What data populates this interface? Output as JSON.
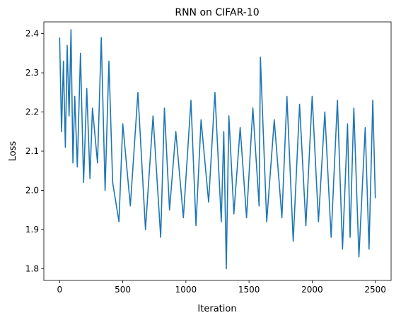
{
  "chart_data": {
    "type": "line",
    "title": "RNN on CIFAR-10",
    "xlabel": "Iteration",
    "ylabel": "Loss",
    "xlim": [
      -125,
      2625
    ],
    "ylim": [
      1.77,
      2.43
    ],
    "xticks": [
      0,
      500,
      1000,
      1500,
      2000,
      2500
    ],
    "xtick_labels": [
      "0",
      "500",
      "1000",
      "1500",
      "2000",
      "2500"
    ],
    "yticks": [
      1.8,
      1.9,
      2.0,
      2.1,
      2.2,
      2.3,
      2.4
    ],
    "ytick_labels": [
      "1.8",
      "1.9",
      "2.0",
      "2.1",
      "2.2",
      "2.3",
      "2.4"
    ],
    "grid": false,
    "line_color": "#1f77b4",
    "series": [
      {
        "points_note": "loss per iteration, 0..2500",
        "x": [
          0,
          15,
          30,
          45,
          60,
          75,
          90,
          105,
          120,
          140,
          165,
          190,
          215,
          240,
          260,
          300,
          330,
          360,
          390,
          420,
          470,
          500,
          560,
          620,
          680,
          740,
          800,
          830,
          870,
          920,
          980,
          1040,
          1080,
          1120,
          1180,
          1230,
          1280,
          1300,
          1320,
          1340,
          1380,
          1430,
          1480,
          1530,
          1580,
          1590,
          1640,
          1700,
          1760,
          1800,
          1850,
          1900,
          1950,
          2000,
          2050,
          2100,
          2150,
          2200,
          2240,
          2280,
          2300,
          2330,
          2370,
          2420,
          2450,
          2480,
          2500
        ],
        "y": [
          2.39,
          2.15,
          2.33,
          2.11,
          2.37,
          2.19,
          2.41,
          2.07,
          2.24,
          2.06,
          2.35,
          2.02,
          2.26,
          2.03,
          2.21,
          2.07,
          2.39,
          2.0,
          2.33,
          2.02,
          1.92,
          2.17,
          1.96,
          2.25,
          1.9,
          2.19,
          1.88,
          2.21,
          1.95,
          2.15,
          1.93,
          2.23,
          1.91,
          2.18,
          1.97,
          2.25,
          1.92,
          2.15,
          1.8,
          2.19,
          1.94,
          2.16,
          1.93,
          2.21,
          1.96,
          2.34,
          1.92,
          2.18,
          1.93,
          2.24,
          1.87,
          2.22,
          1.91,
          2.24,
          1.92,
          2.2,
          1.88,
          2.23,
          1.85,
          2.17,
          1.88,
          2.21,
          1.83,
          2.16,
          1.85,
          2.23,
          1.98
        ]
      }
    ]
  }
}
